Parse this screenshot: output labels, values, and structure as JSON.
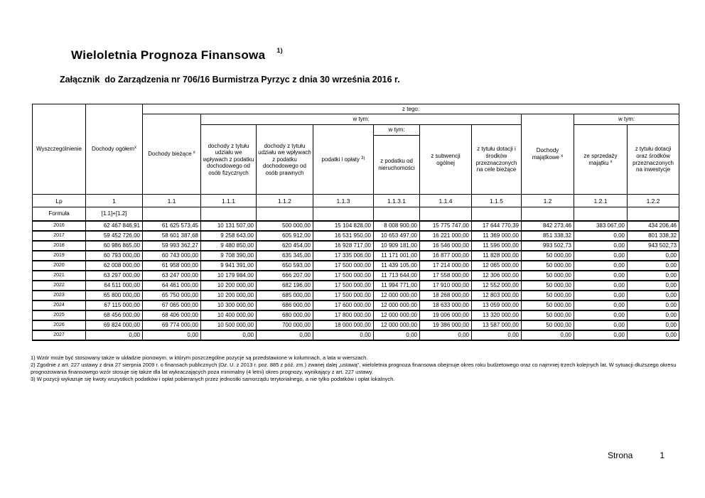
{
  "page": {
    "title": "Wieloletnia Prognoza Finansowa",
    "title_superscript": "1)",
    "subtitle": "Załącznik  do Zarządzenia nr 706/16 Burmistrza Pyrzyc z dnia 30 września 2016 r.",
    "footer_label": "Strona",
    "footer_number": "1"
  },
  "table": {
    "header": {
      "col_wyszczegolnienie": "Wyszczególnienie",
      "col_dochody_ogolem": "Dochody ogółem",
      "sup_x": "x",
      "sup_3": "3)",
      "z_tego": "z tego:",
      "w_tym": "w tym:",
      "col_dochody_biezace": "Dochody bieżące",
      "col_pit": "dochody z tytułu udziału we wpływach z podatku dochodowego od osób fizycznych",
      "col_cit": "dochody z tytułu udziału we wpływach z podatku dochodowego od osób prawnych",
      "col_podatki_oplaty": "podatki i opłaty",
      "col_podatek_od_nieruchomosci": "z podatku od nieruchomości",
      "col_subwencja_ogolna": "z subwencji ogólnej",
      "col_dotacje_cele_biezace": "z tytułu dotacji i środków przeznaczonych na cele bieżące",
      "col_dochody_majatkowe": "Dochody majątkowe",
      "col_sprzedaz_majatku": "ze sprzedaży majątku",
      "col_dotacje_inwestycje": "z tytułu dotacji oraz środków przeznaczonych na inwestycje"
    },
    "lp_row": [
      "Lp",
      "1",
      "1.1",
      "1.1.1",
      "1.1.2",
      "1.1.3",
      "1.1.3.1",
      "1.1.4",
      "1.1.5",
      "1.2",
      "1.2.1",
      "1.2.2"
    ],
    "formula_row": [
      "Formuła",
      "[1.1]+[1.2]",
      "",
      "",
      "",
      "",
      "",
      "",
      "",
      "",
      "",
      ""
    ],
    "rows": [
      {
        "year": "2016",
        "values": [
          "62 467 846,91",
          "61 625 573,45",
          "10 131 507,00",
          "500 000,00",
          "15 104 828,00",
          "8 008 900,00",
          "15 775 747,00",
          "17 644 770,39",
          "842 273,46",
          "383 067,00",
          "434 206,46"
        ]
      },
      {
        "year": "2017",
        "values": [
          "59 452 726,00",
          "58 601 387,68",
          "9 258 643,00",
          "605 912,00",
          "16 531 950,00",
          "10 653 497,00",
          "16 221 000,00",
          "11 369 000,00",
          "851 338,32",
          "0,00",
          "801 338,32"
        ]
      },
      {
        "year": "2018",
        "values": [
          "60 986 865,00",
          "59 993 362,27",
          "9 480 850,00",
          "620 454,00",
          "16 928 717,00",
          "10 909 181,00",
          "16 546 000,00",
          "11 596 000,00",
          "993 502,73",
          "0,00",
          "943 502,73"
        ]
      },
      {
        "year": "2019",
        "values": [
          "60 793 000,00",
          "60 743 000,00",
          "9 708 390,00",
          "635 345,00",
          "17 335 006,00",
          "11 171 001,00",
          "16 877 000,00",
          "11 828 000,00",
          "50 000,00",
          "0,00",
          "0,00"
        ]
      },
      {
        "year": "2020",
        "values": [
          "62 008 000,00",
          "61 958 000,00",
          "9 941 391,00",
          "650 593,00",
          "17 500 000,00",
          "11 439 105,00",
          "17 214 000,00",
          "12 065 000,00",
          "50 000,00",
          "0,00",
          "0,00"
        ]
      },
      {
        "year": "2021",
        "values": [
          "63 297 000,00",
          "63 247 000,00",
          "10 179 984,00",
          "666 207,00",
          "17 500 000,00",
          "11 713 644,00",
          "17 558 000,00",
          "12 306 000,00",
          "50 000,00",
          "0,00",
          "0,00"
        ]
      },
      {
        "year": "2022",
        "values": [
          "64 511 000,00",
          "64 461 000,00",
          "10 200 000,00",
          "682 196,00",
          "17 500 000,00",
          "11 994 771,00",
          "17 910 000,00",
          "12 552 000,00",
          "50 000,00",
          "0,00",
          "0,00"
        ]
      },
      {
        "year": "2023",
        "values": [
          "65 800 000,00",
          "65 750 000,00",
          "10 200 000,00",
          "685 000,00",
          "17 500 000,00",
          "12 000 000,00",
          "18 268 000,00",
          "12 803 000,00",
          "50 000,00",
          "0,00",
          "0,00"
        ]
      },
      {
        "year": "2024",
        "values": [
          "67 115 000,00",
          "67 065 000,00",
          "10 300 000,00",
          "686 000,00",
          "17 600 000,00",
          "12 000 000,00",
          "18 633 000,00",
          "13 059 000,00",
          "50 000,00",
          "0,00",
          "0,00"
        ]
      },
      {
        "year": "2025",
        "values": [
          "68 456 000,00",
          "68 406 000,00",
          "10 400 000,00",
          "680 000,00",
          "17 800 000,00",
          "12 000 000,00",
          "19 006 000,00",
          "13 320 000,00",
          "50 000,00",
          "0,00",
          "0,00"
        ]
      },
      {
        "year": "2026",
        "values": [
          "69 824 000,00",
          "69 774 000,00",
          "10 500 000,00",
          "700 000,00",
          "18 000 000,00",
          "12 000 000,00",
          "19 386 000,00",
          "13 587 000,00",
          "50 000,00",
          "0,00",
          "0,00"
        ]
      },
      {
        "year": "2027",
        "values": [
          "0,00",
          "0,00",
          "0,00",
          "0,00",
          "0,00",
          "0,00",
          "0,00",
          "0,00",
          "0,00",
          "0,00",
          "0,00"
        ]
      }
    ]
  },
  "footnotes": [
    "1) Wzór może być stosowany także w układzie pionowym, w którym poszczególne pozycje są przedstawione w kolumnach, a lata w wierszach.",
    "2) Zgodnie z art. 227 ustawy z dnia 27 sierpnia 2009 r. o finansach publicznych (Dz. U. z 2013 r. poz. 885 z póź. zm.) zwanej dalej „ustawą”, wieloletnia prognoza finansowa obejmuje okres roku budżetowego oraz co najmniej trzech kolejnych lat. W sytuacji dłuższego  okresu prognozowania finansowego wzór stosuje się także dla lat  wykraczających poza minimalny (4 letni) okres prognozy, wynikający z art. 227 ustawy.",
    "3) W pozycji wykazuje się kwoty wszystkich podatków i opłat pobieranych przez jednostki samorządu terytorialnego, a nie tylko podatków i opłat lokalnych."
  ]
}
